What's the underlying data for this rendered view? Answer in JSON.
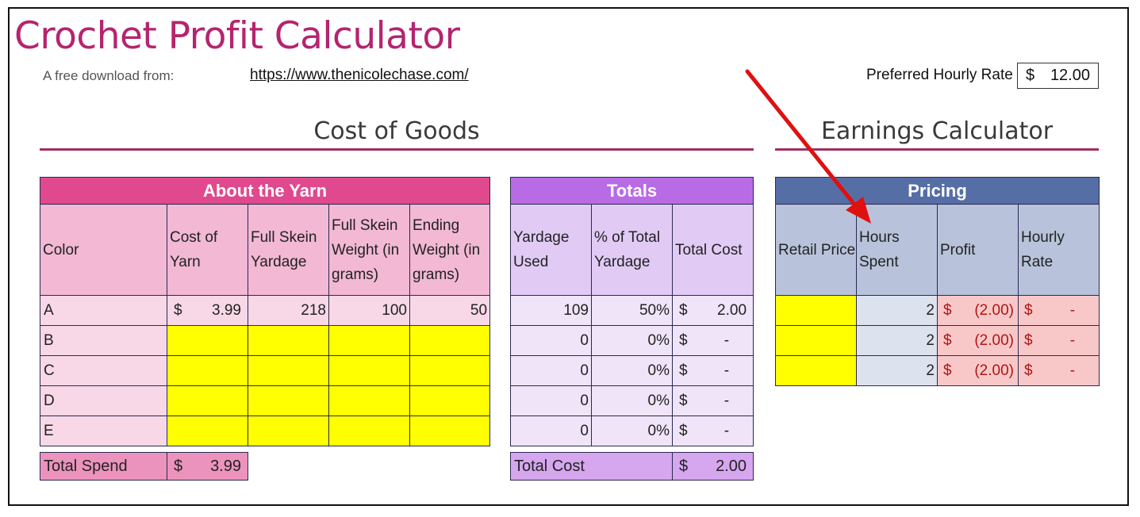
{
  "header": {
    "title": "Crochet Profit Calculator",
    "subtitle": "A free download from:",
    "link": "https://www.thenicolechase.com/",
    "rate_label": "Preferred Hourly Rate",
    "rate_currency": "$",
    "rate_value": "12.00"
  },
  "sections": {
    "cost_of_goods": "Cost of Goods",
    "earnings": "Earnings Calculator"
  },
  "yarn": {
    "title": "About the Yarn",
    "columns": [
      "Color",
      "Cost of Yarn",
      "Full Skein Yardage",
      "Full Skein Weight (in grams)",
      "Ending Weight (in grams)"
    ],
    "rows": [
      {
        "color": "A",
        "cost_cur": "$",
        "cost": "3.99",
        "yardage": "218",
        "weight": "100",
        "ending": "50"
      },
      {
        "color": "B",
        "cost_cur": "",
        "cost": "",
        "yardage": "",
        "weight": "",
        "ending": ""
      },
      {
        "color": "C",
        "cost_cur": "",
        "cost": "",
        "yardage": "",
        "weight": "",
        "ending": ""
      },
      {
        "color": "D",
        "cost_cur": "",
        "cost": "",
        "yardage": "",
        "weight": "",
        "ending": ""
      },
      {
        "color": "E",
        "cost_cur": "",
        "cost": "",
        "yardage": "",
        "weight": "",
        "ending": ""
      }
    ],
    "total_label": "Total Spend",
    "total_cur": "$",
    "total_value": "3.99"
  },
  "totals": {
    "title": "Totals",
    "columns": [
      "Yardage Used",
      "% of Total Yardage",
      "Total Cost"
    ],
    "rows": [
      {
        "used": "109",
        "pct": "50%",
        "cur": "$",
        "cost": "2.00"
      },
      {
        "used": "0",
        "pct": "0%",
        "cur": "$",
        "cost": "-"
      },
      {
        "used": "0",
        "pct": "0%",
        "cur": "$",
        "cost": "-"
      },
      {
        "used": "0",
        "pct": "0%",
        "cur": "$",
        "cost": "-"
      },
      {
        "used": "0",
        "pct": "0%",
        "cur": "$",
        "cost": "-"
      }
    ],
    "total_label": "Total Cost",
    "total_cur": "$",
    "total_value": "2.00"
  },
  "pricing": {
    "title": "Pricing",
    "columns": [
      "Retail Price",
      "Hours Spent",
      "Profit",
      "Hourly Rate"
    ],
    "rows": [
      {
        "retail": "",
        "hours": "2",
        "profit_cur": "$",
        "profit": "(2.00)",
        "rate_cur": "$",
        "rate": "-"
      },
      {
        "retail": "",
        "hours": "2",
        "profit_cur": "$",
        "profit": "(2.00)",
        "rate_cur": "$",
        "rate": "-"
      },
      {
        "retail": "",
        "hours": "2",
        "profit_cur": "$",
        "profit": "(2.00)",
        "rate_cur": "$",
        "rate": "-"
      }
    ]
  },
  "colors": {
    "title": "#b5246f",
    "yarn_header": "#e0498e",
    "yarn_sub": "#f2b8d4",
    "yarn_row": "#f8d8e7",
    "yarn_total": "#ec93bd",
    "totals_header": "#b96be6",
    "totals_sub": "#e1cbf5",
    "totals_row": "#f0e4f9",
    "totals_total": "#d6a6ef",
    "pricing_header": "#566ea6",
    "pricing_sub": "#b8c3db",
    "pricing_hours": "#dde2ef",
    "pricing_money": "#f8c8c9",
    "input_yellow": "#ffff00",
    "arrow": "#e01010"
  },
  "annotation": {
    "arrow_icon": "red-arrow-icon"
  }
}
